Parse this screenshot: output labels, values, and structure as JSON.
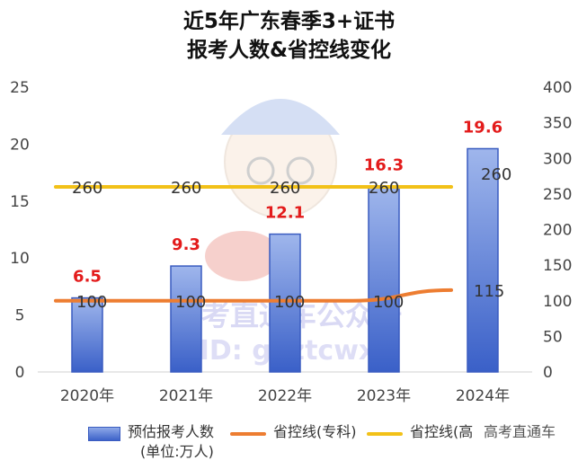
{
  "title_line1": "近5年广东春季3+证书",
  "title_line2": "报考人数&省控线变化",
  "chart_data": {
    "type": "bar",
    "categories": [
      "2020年",
      "2021年",
      "2022年",
      "2023年",
      "2024年"
    ],
    "series": [
      {
        "name": "预估报考人数(单位:万人)",
        "type": "bar",
        "axis": "left",
        "values": [
          6.5,
          9.3,
          12.1,
          16.3,
          19.6
        ],
        "data_labels": [
          "6.5",
          "9.3",
          "12.1",
          "16.3",
          "19.6"
        ],
        "color": "#4a6fd4"
      },
      {
        "name": "省控线(专科)",
        "type": "line",
        "axis": "right",
        "values": [
          100,
          100,
          100,
          100,
          115
        ],
        "data_labels": [
          "100",
          "100",
          "100",
          "100",
          "115"
        ],
        "color": "#ed7d31"
      },
      {
        "name": "省控线(高",
        "type": "line",
        "axis": "right",
        "values": [
          260,
          260,
          260,
          260,
          260
        ],
        "data_labels": [
          "260",
          "260",
          "260",
          "260",
          "260"
        ],
        "color": "#f2c118"
      }
    ],
    "y_left": {
      "ylim": [
        0,
        25
      ],
      "ticks": [
        "0",
        "5",
        "10",
        "15",
        "20",
        "25"
      ]
    },
    "y_right": {
      "ylim": [
        0,
        400
      ],
      "ticks": [
        "0",
        "50",
        "100",
        "150",
        "200",
        "250",
        "300",
        "350",
        "400"
      ]
    },
    "grid": false,
    "legend_position": "bottom"
  },
  "legend": {
    "bar_label_line1": "预估报考人数",
    "bar_label_line2": "(单位:万人)",
    "orange_label": "省控线(专科)",
    "yellow_label": "省控线(高",
    "watermark_tail": "高考直通车"
  },
  "colors": {
    "bar_top": "#9fb6ec",
    "bar_bottom": "#3a60c8",
    "bar_border": "#3a5cc0",
    "bar_label": "#e31b1b",
    "orange_line": "#ed7d31",
    "yellow_line": "#f2c118",
    "axis_text": "#444444"
  },
  "watermark": {
    "line1": "高考直通车公众号",
    "line2": "ID: gkztcwx"
  }
}
